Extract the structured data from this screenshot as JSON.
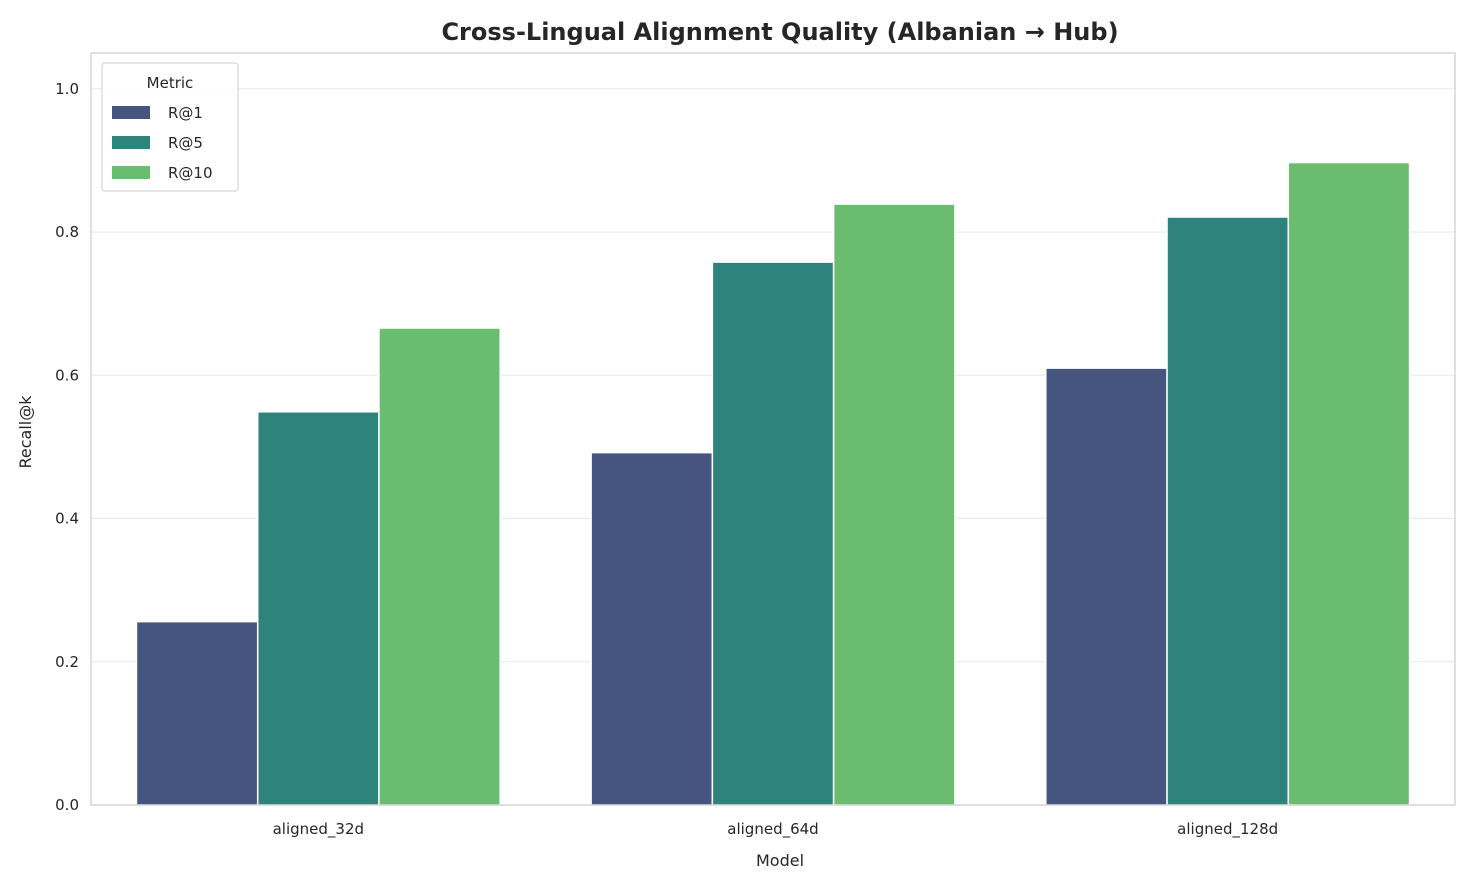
{
  "chart_data": {
    "type": "bar",
    "title": "Cross-Lingual Alignment Quality (Albanian → Hub)",
    "xlabel": "Model",
    "ylabel": "Recall@k",
    "categories": [
      "aligned_32d",
      "aligned_64d",
      "aligned_128d"
    ],
    "series": [
      {
        "name": "R@1",
        "color": "#46557f",
        "values": [
          0.256,
          0.492,
          0.61
        ]
      },
      {
        "name": "R@5",
        "color": "#2e837c",
        "values": [
          0.549,
          0.758,
          0.821
        ]
      },
      {
        "name": "R@10",
        "color": "#6abd6e",
        "values": [
          0.666,
          0.839,
          0.897
        ]
      }
    ],
    "ylim": [
      0,
      1.05
    ],
    "yticks": [
      "0.0",
      "0.2",
      "0.4",
      "0.6",
      "0.8",
      "1.0"
    ],
    "grid": true,
    "legend": {
      "title": "Metric",
      "placement": "top-left"
    }
  }
}
